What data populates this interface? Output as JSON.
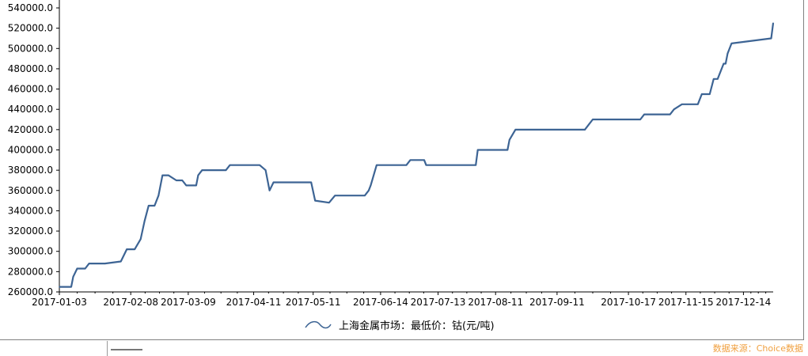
{
  "chart_data": {
    "type": "line",
    "title": "",
    "xlabel": "",
    "ylabel": "",
    "ylim": [
      260000,
      540000
    ],
    "yticks": [
      "540000.0",
      "520000.0",
      "500000.0",
      "480000.0",
      "460000.0",
      "440000.0",
      "420000.0",
      "400000.0",
      "380000.0",
      "360000.0",
      "340000.0",
      "320000.0",
      "300000.0",
      "280000.0",
      "260000.0"
    ],
    "xticks": [
      "2017-01-03",
      "2017-02-08",
      "2017-03-09",
      "2017-04-11",
      "2017-05-11",
      "2017-06-14",
      "2017-07-13",
      "2017-08-11",
      "2017-09-11",
      "2017-10-17",
      "2017-11-15",
      "2017-12-14"
    ],
    "legend_position": "bottom-center",
    "grid": false,
    "line_color": "#3d6494",
    "series": [
      {
        "name": "上海金属市场：最低价：钴(元/吨)",
        "x": [
          "2017-01-03",
          "2017-01-09",
          "2017-01-10",
          "2017-01-12",
          "2017-01-16",
          "2017-01-18",
          "2017-01-26",
          "2017-02-03",
          "2017-02-06",
          "2017-02-10",
          "2017-02-13",
          "2017-02-15",
          "2017-02-17",
          "2017-02-20",
          "2017-02-22",
          "2017-02-24",
          "2017-02-27",
          "2017-03-03",
          "2017-03-06",
          "2017-03-08",
          "2017-03-13",
          "2017-03-14",
          "2017-03-16",
          "2017-03-28",
          "2017-03-30",
          "2017-04-14",
          "2017-04-17",
          "2017-04-19",
          "2017-04-21",
          "2017-05-10",
          "2017-05-12",
          "2017-05-19",
          "2017-05-22",
          "2017-06-06",
          "2017-06-08",
          "2017-06-09",
          "2017-06-12",
          "2017-06-27",
          "2017-06-29",
          "2017-07-06",
          "2017-07-07",
          "2017-08-01",
          "2017-08-02",
          "2017-08-17",
          "2017-08-18",
          "2017-08-21",
          "2017-09-25",
          "2017-09-27",
          "2017-09-29",
          "2017-10-23",
          "2017-10-25",
          "2017-11-07",
          "2017-11-09",
          "2017-11-13",
          "2017-11-21",
          "2017-11-23",
          "2017-11-27",
          "2017-11-29",
          "2017-12-01",
          "2017-12-04",
          "2017-12-05",
          "2017-12-06",
          "2017-12-08",
          "2017-12-28",
          "2017-12-29"
        ],
        "values": [
          265000,
          265000,
          275000,
          283000,
          283000,
          288000,
          288000,
          290000,
          302000,
          302000,
          312000,
          330000,
          345000,
          345000,
          355000,
          375000,
          375000,
          370000,
          370000,
          365000,
          365000,
          375000,
          380000,
          380000,
          385000,
          385000,
          380000,
          360000,
          368000,
          368000,
          350000,
          348000,
          355000,
          355000,
          360000,
          365000,
          385000,
          385000,
          390000,
          390000,
          385000,
          385000,
          400000,
          400000,
          410000,
          420000,
          420000,
          425000,
          430000,
          430000,
          435000,
          435000,
          440000,
          445000,
          445000,
          455000,
          455000,
          470000,
          470000,
          485000,
          485000,
          495000,
          505000,
          510000,
          525000
        ]
      }
    ]
  },
  "source": {
    "label": "数据来源：Choice数据"
  }
}
